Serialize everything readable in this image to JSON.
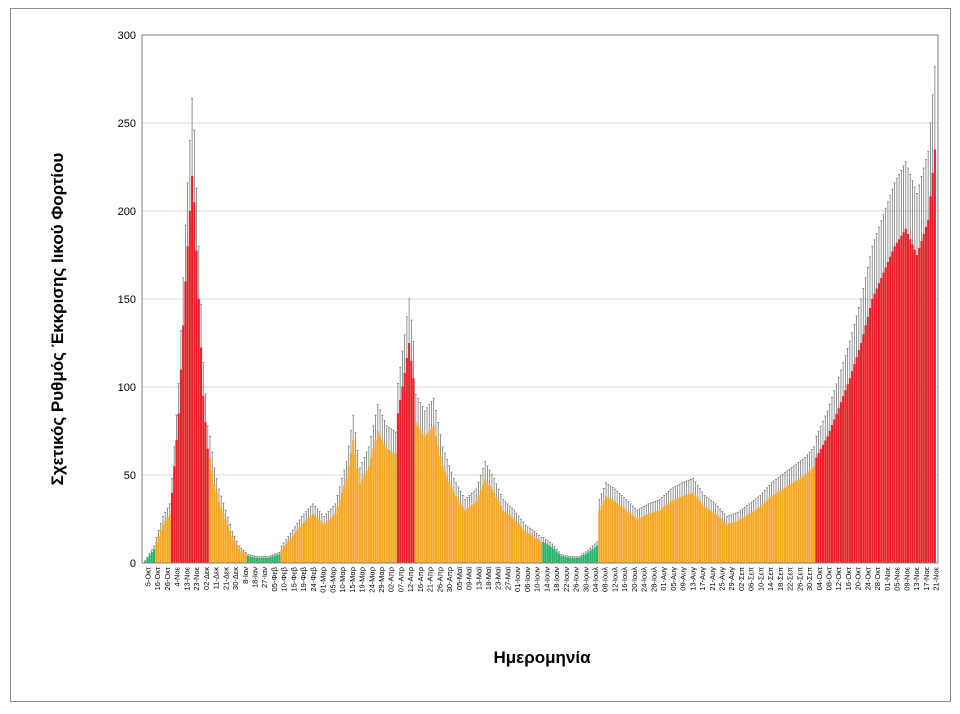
{
  "chart_data": {
    "type": "bar",
    "ylabel": "Σχετικός Ρυθμός Έκκρισης Ιικού Φορτίου",
    "xlabel": "Ημερομηνία",
    "ylim": [
      0,
      300
    ],
    "yticks": [
      0,
      50,
      100,
      150,
      200,
      250,
      300
    ],
    "grid": "horizontal",
    "error_bars": true,
    "colors": {
      "red": "#e8202a",
      "orange": "#f5a623",
      "green": "#27b36b",
      "error": "#7a7a7a",
      "grid": "#d9d9d9",
      "axis": "#7f7f7f"
    },
    "x_tick_labels": [
      "5-Οκτ",
      "16-Οκτ",
      "26-Οκτ",
      "4-Νοε",
      "13-Νοε",
      "23-Νοε",
      "02-Δεκ",
      "11-Δεκ",
      "21-Δεκ",
      "30-Δεκ",
      "8-Ιαν",
      "18-Ιαν",
      "27-Ιαν",
      "05-Φεβ",
      "10-Φεβ",
      "15-Φεβ",
      "19-Φεβ",
      "24-Φεβ",
      "01-Μαρ",
      "05-Μαρ",
      "10-Μαρ",
      "15-Μαρ",
      "19-Μαρ",
      "24-Μαρ",
      "29-Μαρ",
      "02-Απρ",
      "07-Απρ",
      "12-Απρ",
      "16-Απρ",
      "21-Απρ",
      "26-Απρ",
      "30-Απρ",
      "05-Μαϊ",
      "09-Μαϊ",
      "13-Μαϊ",
      "18-Μαϊ",
      "23-Μαϊ",
      "27-Μαϊ",
      "01-Ιουν",
      "06-Ιουν",
      "10-Ιουν",
      "14-Ιουν",
      "18-Ιουν",
      "22-Ιουν",
      "26-Ιουν",
      "30-Ιουν",
      "04-Ιουλ",
      "08-Ιουλ",
      "12-Ιουλ",
      "16-Ιουλ",
      "20-Ιουλ",
      "24-Ιουλ",
      "28-Ιουλ",
      "01-Αυγ",
      "05-Αυγ",
      "09-Αυγ",
      "13-Αυγ",
      "17-Αυγ",
      "21-Αυγ",
      "25-Αυγ",
      "29-Αυγ",
      "02-Σεπ",
      "06-Σεπ",
      "10-Σεπ",
      "14-Σεπ",
      "18-Σεπ",
      "22-Σεπ",
      "26-Σεπ",
      "30-Σεπ",
      "04-Οκτ",
      "08-Οκτ",
      "12-Οκτ",
      "16-Οκτ",
      "20-Οκτ",
      "24-Οκτ",
      "28-Οκτ",
      "01-Νοε",
      "05-Νοε",
      "09-Νοε",
      "13-Νοε",
      "17-Νοε",
      "21-Νοε"
    ],
    "segments": [
      {
        "color": "green",
        "points": [
          [
            0,
            1
          ],
          [
            4,
            8
          ]
        ]
      },
      {
        "color": "orange",
        "points": [
          [
            5,
            12
          ],
          [
            8,
            22
          ],
          [
            11,
            28
          ]
        ]
      },
      {
        "color": "red",
        "points": [
          [
            12,
            40
          ],
          [
            15,
            85
          ],
          [
            18,
            160
          ],
          [
            21,
            220
          ],
          [
            22,
            205
          ],
          [
            24,
            150
          ],
          [
            26,
            95
          ],
          [
            28,
            65
          ]
        ]
      },
      {
        "color": "orange",
        "points": [
          [
            29,
            60
          ],
          [
            31,
            45
          ],
          [
            33,
            35
          ],
          [
            36,
            25
          ],
          [
            39,
            15
          ],
          [
            42,
            8
          ],
          [
            45,
            5
          ]
        ]
      },
      {
        "color": "green",
        "points": [
          [
            46,
            4
          ],
          [
            50,
            3
          ],
          [
            55,
            3
          ],
          [
            60,
            5
          ]
        ]
      },
      {
        "color": "orange",
        "points": [
          [
            61,
            8
          ],
          [
            65,
            14
          ],
          [
            70,
            22
          ],
          [
            75,
            28
          ],
          [
            80,
            22
          ],
          [
            85,
            28
          ],
          [
            90,
            48
          ],
          [
            93,
            70
          ],
          [
            96,
            45
          ],
          [
            100,
            55
          ],
          [
            104,
            75
          ],
          [
            108,
            65
          ],
          [
            112,
            62
          ]
        ]
      },
      {
        "color": "red",
        "points": [
          [
            113,
            85
          ],
          [
            116,
            108
          ],
          [
            118,
            125
          ],
          [
            120,
            105
          ]
        ]
      },
      {
        "color": "orange",
        "points": [
          [
            121,
            80
          ],
          [
            125,
            72
          ],
          [
            129,
            78
          ],
          [
            133,
            55
          ],
          [
            138,
            40
          ],
          [
            143,
            30
          ],
          [
            148,
            35
          ],
          [
            152,
            48
          ],
          [
            156,
            40
          ],
          [
            160,
            30
          ],
          [
            165,
            25
          ],
          [
            170,
            18
          ],
          [
            174,
            15
          ],
          [
            177,
            12
          ]
        ]
      },
      {
        "color": "green",
        "points": [
          [
            178,
            12
          ],
          [
            182,
            9
          ],
          [
            186,
            4
          ],
          [
            190,
            3
          ],
          [
            194,
            3
          ],
          [
            198,
            6
          ],
          [
            202,
            10
          ]
        ]
      },
      {
        "color": "orange",
        "points": [
          [
            203,
            30
          ],
          [
            206,
            38
          ],
          [
            210,
            35
          ],
          [
            215,
            30
          ],
          [
            220,
            25
          ],
          [
            225,
            28
          ],
          [
            230,
            30
          ],
          [
            235,
            35
          ],
          [
            240,
            38
          ],
          [
            245,
            40
          ],
          [
            250,
            32
          ],
          [
            255,
            28
          ],
          [
            260,
            22
          ],
          [
            265,
            24
          ],
          [
            270,
            28
          ],
          [
            275,
            32
          ],
          [
            280,
            38
          ],
          [
            285,
            42
          ],
          [
            290,
            46
          ],
          [
            295,
            50
          ],
          [
            299,
            55
          ]
        ]
      },
      {
        "color": "red",
        "points": [
          [
            300,
            60
          ],
          [
            305,
            72
          ],
          [
            310,
            88
          ],
          [
            315,
            105
          ],
          [
            320,
            125
          ],
          [
            325,
            150
          ],
          [
            330,
            165
          ],
          [
            335,
            180
          ],
          [
            340,
            190
          ],
          [
            345,
            175
          ],
          [
            350,
            195
          ],
          [
            353,
            235
          ]
        ]
      }
    ],
    "error_fraction": 0.2
  }
}
